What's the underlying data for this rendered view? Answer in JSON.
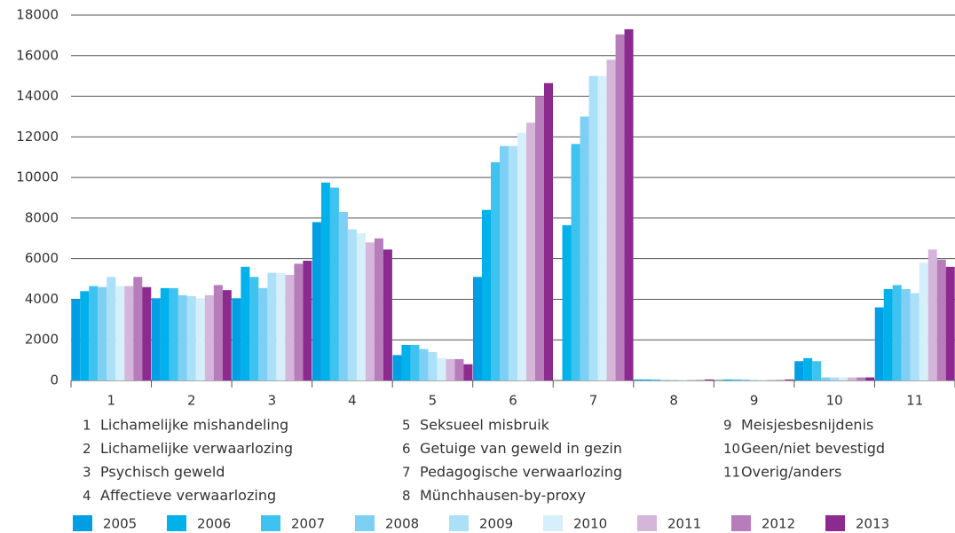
{
  "chart_data": {
    "type": "bar",
    "categories": [
      "1",
      "2",
      "3",
      "4",
      "5",
      "6",
      "7",
      "8",
      "9",
      "10",
      "11"
    ],
    "series": [
      {
        "name": "2005",
        "color": "#009fe3",
        "values": [
          4000,
          4050,
          4050,
          7800,
          1250,
          5100,
          0,
          50,
          0,
          950,
          3600
        ]
      },
      {
        "name": "2006",
        "color": "#00b1eb",
        "values": [
          4400,
          4550,
          5600,
          9750,
          1750,
          8400,
          7650,
          50,
          50,
          1100,
          4500
        ]
      },
      {
        "name": "2007",
        "color": "#3ec2f0",
        "values": [
          4650,
          4550,
          5100,
          9500,
          1750,
          10750,
          11650,
          50,
          50,
          950,
          4700
        ]
      },
      {
        "name": "2008",
        "color": "#7dd0f4",
        "values": [
          4600,
          4200,
          4550,
          8300,
          1550,
          11550,
          13000,
          30,
          50,
          150,
          4500
        ]
      },
      {
        "name": "2009",
        "color": "#abe0f8",
        "values": [
          5100,
          4150,
          5300,
          7450,
          1400,
          11550,
          15000,
          30,
          30,
          150,
          4300
        ]
      },
      {
        "name": "2010",
        "color": "#d5effb",
        "values": [
          4650,
          4050,
          5300,
          7250,
          1100,
          12200,
          15000,
          30,
          30,
          150,
          5800
        ]
      },
      {
        "name": "2011",
        "color": "#d6b5da",
        "values": [
          4650,
          4200,
          5200,
          6800,
          1050,
          12700,
          15800,
          30,
          30,
          150,
          6450
        ]
      },
      {
        "name": "2012",
        "color": "#b67dba",
        "values": [
          5100,
          4700,
          5750,
          7000,
          1050,
          14000,
          17050,
          30,
          30,
          150,
          5950
        ]
      },
      {
        "name": "2013",
        "color": "#8c2a8f",
        "values": [
          4600,
          4450,
          5900,
          6450,
          800,
          14650,
          17300,
          50,
          50,
          150,
          5600
        ]
      }
    ],
    "ylim": [
      0,
      18000
    ],
    "yticks": [
      0,
      2000,
      4000,
      6000,
      8000,
      10000,
      12000,
      14000,
      16000,
      18000
    ],
    "grid": true,
    "category_notes": [
      {
        "number": "1",
        "label": "Lichamelijke mishandeling"
      },
      {
        "number": "2",
        "label": "Lichamelijke verwaarlozing"
      },
      {
        "number": "3",
        "label": "Psychisch geweld"
      },
      {
        "number": "4",
        "label": "Affectieve verwaarlozing"
      },
      {
        "number": "5",
        "label": "Seksueel misbruik"
      },
      {
        "number": "6",
        "label": "Getuige van geweld in gezin"
      },
      {
        "number": "7",
        "label": "Pedagogische verwaarlozing"
      },
      {
        "number": "8",
        "label": "Münchhausen-by-proxy"
      },
      {
        "number": "9",
        "label": "Meisjesbesnijdenis"
      },
      {
        "number": "10",
        "label": "Geen/niet bevestigd"
      },
      {
        "number": "11",
        "label": "Overig/anders"
      }
    ]
  }
}
